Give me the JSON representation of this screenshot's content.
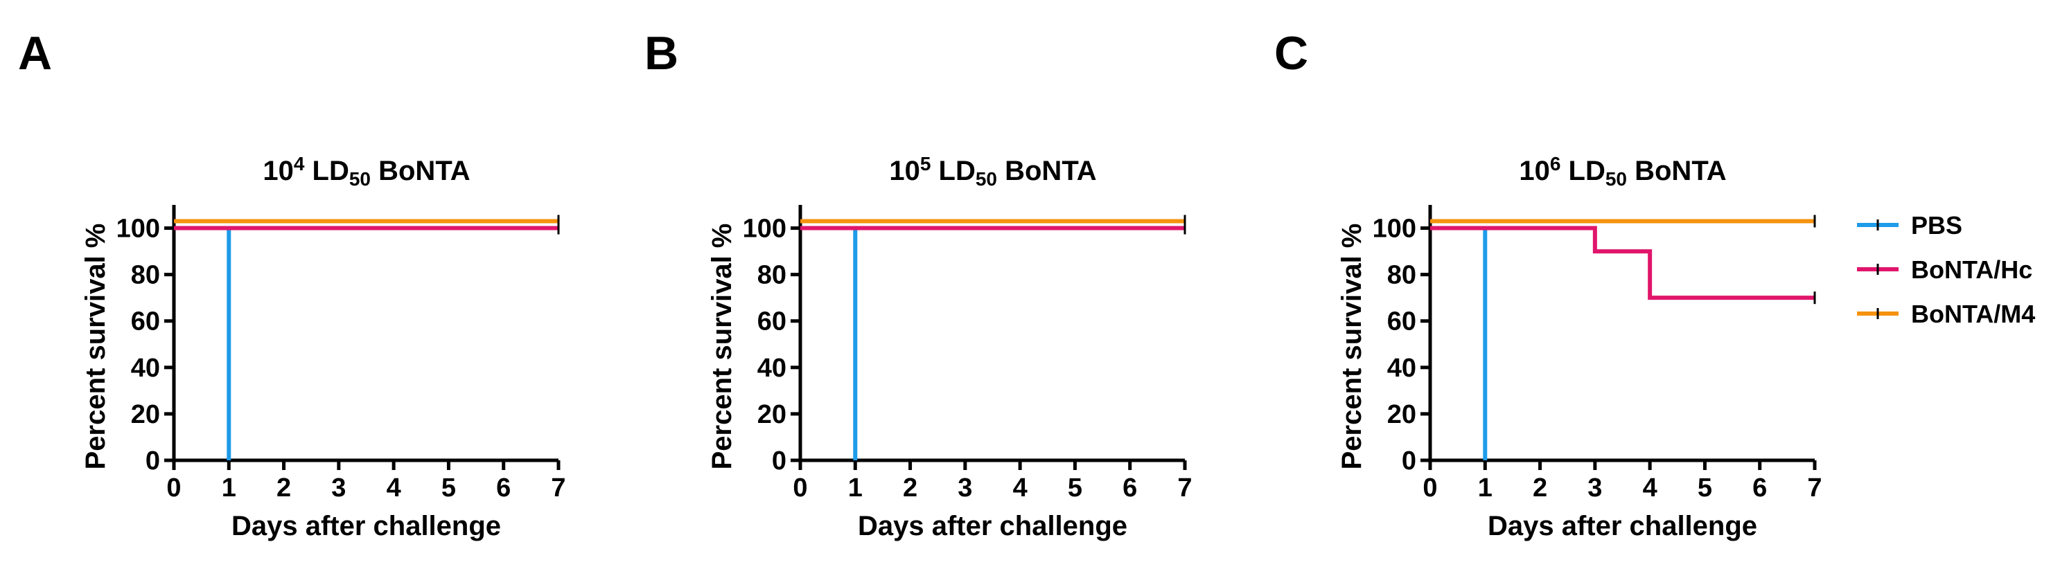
{
  "chart_data": [
    {
      "type": "line",
      "panel": "A",
      "title_parts": [
        {
          "text": "10"
        },
        {
          "text": "4",
          "shift": "super"
        },
        {
          "text": " LD"
        },
        {
          "text": "50",
          "shift": "sub"
        },
        {
          "text": " BoNTA"
        }
      ],
      "x_label": "Days after challenge",
      "y_label": "Percent survival %",
      "xlim": [
        0,
        7
      ],
      "xticks": [
        0,
        1,
        2,
        3,
        4,
        5,
        6,
        7
      ],
      "ylim": [
        0,
        110
      ],
      "yticks": [
        0,
        20,
        40,
        60,
        80,
        100
      ],
      "series": [
        {
          "name": "PBS",
          "color": "#1e9be9",
          "x": [
            0,
            1,
            1
          ],
          "values": [
            100,
            100,
            0
          ]
        },
        {
          "name": "BoNTA/Hc",
          "color": "#e0156b",
          "x": [
            0,
            7
          ],
          "values": [
            100,
            100
          ]
        },
        {
          "name": "BoNTA/M4",
          "color": "#f5920f",
          "x": [
            0,
            7
          ],
          "values": [
            103,
            103
          ]
        }
      ]
    },
    {
      "type": "line",
      "panel": "B",
      "title_parts": [
        {
          "text": "10"
        },
        {
          "text": "5",
          "shift": "super"
        },
        {
          "text": " LD"
        },
        {
          "text": "50",
          "shift": "sub"
        },
        {
          "text": " BoNTA"
        }
      ],
      "x_label": "Days after challenge",
      "y_label": "Percent survival %",
      "xlim": [
        0,
        7
      ],
      "xticks": [
        0,
        1,
        2,
        3,
        4,
        5,
        6,
        7
      ],
      "ylim": [
        0,
        110
      ],
      "yticks": [
        0,
        20,
        40,
        60,
        80,
        100
      ],
      "series": [
        {
          "name": "PBS",
          "color": "#1e9be9",
          "x": [
            0,
            1,
            1
          ],
          "values": [
            100,
            100,
            0
          ]
        },
        {
          "name": "BoNTA/Hc",
          "color": "#e0156b",
          "x": [
            0,
            7
          ],
          "values": [
            100,
            100
          ]
        },
        {
          "name": "BoNTA/M4",
          "color": "#f5920f",
          "x": [
            0,
            7
          ],
          "values": [
            103,
            103
          ]
        }
      ]
    },
    {
      "type": "line",
      "panel": "C",
      "title_parts": [
        {
          "text": "10"
        },
        {
          "text": "6",
          "shift": "super"
        },
        {
          "text": " LD"
        },
        {
          "text": "50",
          "shift": "sub"
        },
        {
          "text": " BoNTA"
        }
      ],
      "x_label": "Days after challenge",
      "y_label": "Percent survival %",
      "xlim": [
        0,
        7
      ],
      "xticks": [
        0,
        1,
        2,
        3,
        4,
        5,
        6,
        7
      ],
      "ylim": [
        0,
        110
      ],
      "yticks": [
        0,
        20,
        40,
        60,
        80,
        100
      ],
      "legend": "right",
      "series": [
        {
          "name": "PBS",
          "color": "#1e9be9",
          "x": [
            0,
            1,
            1
          ],
          "values": [
            100,
            100,
            0
          ]
        },
        {
          "name": "BoNTA/Hc",
          "color": "#e0156b",
          "x": [
            0,
            3,
            3,
            4,
            4,
            7
          ],
          "values": [
            100,
            100,
            90,
            90,
            70,
            70
          ]
        },
        {
          "name": "BoNTA/M4",
          "color": "#f5920f",
          "x": [
            0,
            7
          ],
          "values": [
            103,
            103
          ]
        }
      ]
    }
  ]
}
